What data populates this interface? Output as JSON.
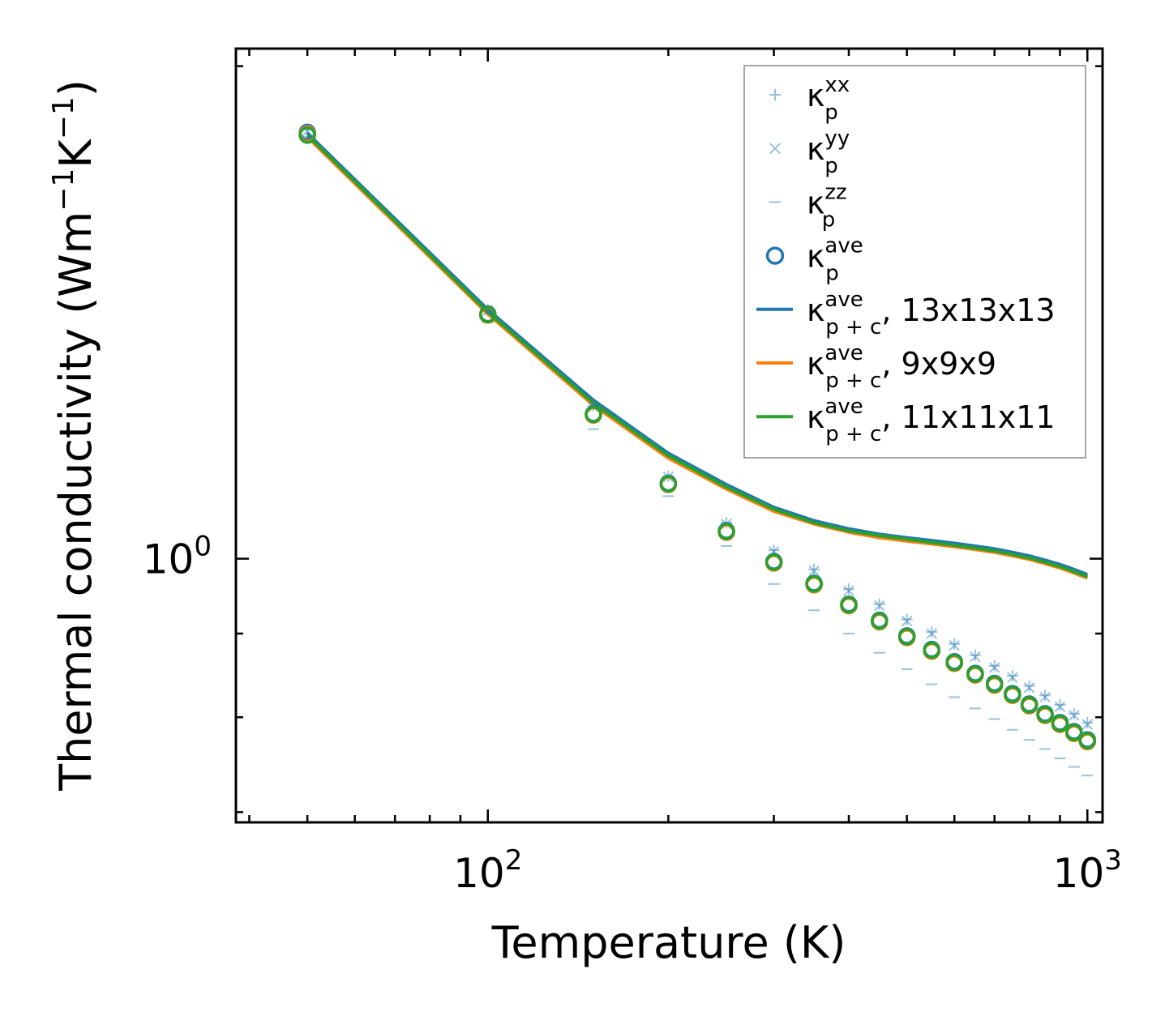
{
  "chart_data": {
    "type": "scatter",
    "title": "",
    "xlabel": "Temperature (K)",
    "ylabel_parts": {
      "prefix": "Thermal conductivity (Wm",
      "exp1": "−1",
      "mid": "K",
      "exp2": "−1",
      "suffix": ")"
    },
    "xscale": "log",
    "yscale": "log",
    "xlim": [
      38,
      1060
    ],
    "ylim": [
      0.69,
      2.05
    ],
    "xticks": [
      {
        "base": "10",
        "exp": "2",
        "value": 100
      },
      {
        "base": "10",
        "exp": "3",
        "value": 1000
      }
    ],
    "yticks": [
      {
        "base": "10",
        "exp": "0",
        "value": 1
      }
    ],
    "legend_position": "top-right",
    "x": [
      50,
      100,
      150,
      200,
      250,
      300,
      350,
      400,
      450,
      500,
      550,
      600,
      650,
      700,
      750,
      800,
      850,
      900,
      950,
      1000
    ],
    "series": [
      {
        "name": "kp_xx",
        "kind": "plus",
        "color": "#1f77b4",
        "alpha": 0.45,
        "values": [
          1.83,
          1.42,
          1.24,
          1.123,
          1.052,
          1.012,
          0.985,
          0.958,
          0.938,
          0.918,
          0.902,
          0.887,
          0.873,
          0.86,
          0.848,
          0.836,
          0.825,
          0.814,
          0.804,
          0.794
        ]
      },
      {
        "name": "kp_yy",
        "kind": "cross",
        "color": "#1f77b4",
        "alpha": 0.45,
        "values": [
          1.825,
          1.418,
          1.238,
          1.122,
          1.05,
          1.01,
          0.983,
          0.956,
          0.936,
          0.916,
          0.9,
          0.885,
          0.871,
          0.858,
          0.846,
          0.834,
          0.823,
          0.812,
          0.802,
          0.792
        ]
      },
      {
        "name": "kp_zz",
        "kind": "dash",
        "color": "#1f77b4",
        "alpha": 0.45,
        "values": [
          1.81,
          1.395,
          1.2,
          1.092,
          1.018,
          0.965,
          0.93,
          0.9,
          0.876,
          0.856,
          0.838,
          0.823,
          0.81,
          0.798,
          0.786,
          0.775,
          0.765,
          0.755,
          0.746,
          0.737
        ]
      },
      {
        "name": "kp_ave",
        "kind": "circle",
        "color": "#1f77b4",
        "alpha": 1,
        "values": [
          1.822,
          1.411,
          1.226,
          1.112,
          1.04,
          0.996,
          0.966,
          0.938,
          0.917,
          0.897,
          0.88,
          0.865,
          0.851,
          0.839,
          0.827,
          0.815,
          0.804,
          0.794,
          0.784,
          0.775
        ]
      },
      {
        "name": "kp_ave_orange",
        "kind": "circle",
        "color": "#ff7f0e",
        "alpha": 1,
        "values": [
          1.818,
          1.409,
          1.224,
          1.11,
          1.038,
          0.994,
          0.964,
          0.936,
          0.915,
          0.895,
          0.878,
          0.863,
          0.849,
          0.837,
          0.825,
          0.813,
          0.802,
          0.792,
          0.782,
          0.773
        ]
      },
      {
        "name": "kp_ave_green",
        "kind": "circle",
        "color": "#2ca02c",
        "alpha": 1,
        "values": [
          1.815,
          1.41,
          1.225,
          1.111,
          1.039,
          0.995,
          0.965,
          0.937,
          0.916,
          0.896,
          0.879,
          0.864,
          0.85,
          0.838,
          0.826,
          0.814,
          0.803,
          0.793,
          0.783,
          0.774
        ]
      },
      {
        "name": "kpc_13x13x13",
        "kind": "line",
        "color": "#1f77b4",
        "alpha": 1,
        "values": [
          1.82,
          1.42,
          1.25,
          1.16,
          1.11,
          1.075,
          1.055,
          1.043,
          1.035,
          1.03,
          1.026,
          1.022,
          1.018,
          1.014,
          1.009,
          1.004,
          0.998,
          0.992,
          0.985,
          0.978
        ]
      },
      {
        "name": "kpc_9x9x9",
        "kind": "line",
        "color": "#ff7f0e",
        "alpha": 1,
        "values": [
          1.81,
          1.411,
          1.241,
          1.152,
          1.103,
          1.069,
          1.05,
          1.038,
          1.03,
          1.025,
          1.021,
          1.017,
          1.013,
          1.009,
          1.004,
          0.999,
          0.993,
          0.987,
          0.98,
          0.973
        ]
      },
      {
        "name": "kpc_11x11x11",
        "kind": "line",
        "color": "#2ca02c",
        "alpha": 1,
        "values": [
          1.815,
          1.415,
          1.245,
          1.156,
          1.106,
          1.072,
          1.052,
          1.04,
          1.033,
          1.028,
          1.023,
          1.019,
          1.015,
          1.011,
          1.006,
          1.001,
          0.995,
          0.989,
          0.982,
          0.975
        ]
      }
    ],
    "legend": [
      {
        "kind": "plus",
        "color": "#1f77b4",
        "alpha": 0.45,
        "base": "κ",
        "sup": "xx",
        "sub": "p",
        "suffix": ""
      },
      {
        "kind": "cross",
        "color": "#1f77b4",
        "alpha": 0.45,
        "base": "κ",
        "sup": "yy",
        "sub": "p",
        "suffix": ""
      },
      {
        "kind": "dash",
        "color": "#1f77b4",
        "alpha": 0.45,
        "base": "κ",
        "sup": "zz",
        "sub": "p",
        "suffix": ""
      },
      {
        "kind": "circle",
        "color": "#1f77b4",
        "alpha": 1,
        "base": "κ",
        "sup": "ave",
        "sub": "p",
        "suffix": ""
      },
      {
        "kind": "line",
        "color": "#1f77b4",
        "alpha": 1,
        "base": "κ",
        "sup": "ave",
        "sub": "p + c",
        "suffix": ", 13x13x13"
      },
      {
        "kind": "line",
        "color": "#ff7f0e",
        "alpha": 1,
        "base": "κ",
        "sup": "ave",
        "sub": "p + c",
        "suffix": ", 9x9x9"
      },
      {
        "kind": "line",
        "color": "#2ca02c",
        "alpha": 1,
        "base": "κ",
        "sup": "ave",
        "sub": "p + c",
        "suffix": ", 11x11x11"
      }
    ]
  }
}
